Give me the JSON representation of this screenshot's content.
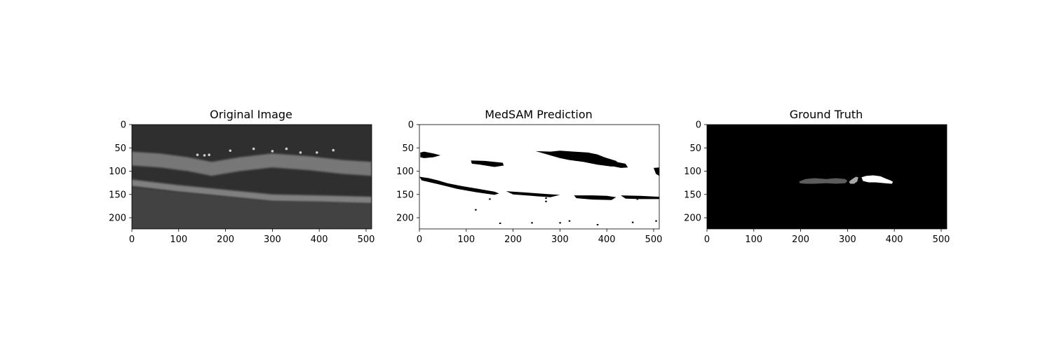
{
  "figure": {
    "background": "#ffffff"
  },
  "chart_data": [
    {
      "type": "image",
      "title": "Original Image",
      "render": "oct_scan",
      "xlim": [
        0,
        512
      ],
      "ylim": [
        224,
        0
      ],
      "xticks": [
        0,
        100,
        200,
        300,
        400,
        500
      ],
      "yticks": [
        0,
        50,
        100,
        150,
        200
      ],
      "layers": [
        {
          "name": "upper_retina_band",
          "top": [
            [
              0,
              58
            ],
            [
              60,
              62
            ],
            [
              120,
              70
            ],
            [
              170,
              80
            ],
            [
              230,
              70
            ],
            [
              300,
              62
            ],
            [
              380,
              68
            ],
            [
              450,
              76
            ],
            [
              512,
              80
            ]
          ],
          "thickness": 30,
          "intensity": 0.65
        },
        {
          "name": "lower_rpe_band",
          "top": [
            [
              0,
              118
            ],
            [
              100,
              130
            ],
            [
              200,
              140
            ],
            [
              300,
              150
            ],
            [
              400,
              152
            ],
            [
              512,
              155
            ]
          ],
          "thickness": 14,
          "intensity": 0.75
        }
      ],
      "bright_spots": [
        [
          140,
          65
        ],
        [
          155,
          66
        ],
        [
          165,
          65
        ],
        [
          210,
          56
        ],
        [
          260,
          52
        ],
        [
          300,
          57
        ],
        [
          330,
          52
        ],
        [
          360,
          60
        ],
        [
          395,
          60
        ],
        [
          430,
          55
        ]
      ]
    },
    {
      "type": "image",
      "title": "MedSAM Prediction",
      "render": "binary_mask",
      "foreground": "#ffffff",
      "background": "#000000",
      "xlim": [
        0,
        512
      ],
      "ylim": [
        224,
        0
      ],
      "xticks": [
        0,
        100,
        200,
        300,
        400,
        500
      ],
      "yticks": [
        0,
        50,
        100,
        150,
        200
      ],
      "dark_regions": [
        [
          [
            2,
            60
          ],
          [
            10,
            58
          ],
          [
            30,
            62
          ],
          [
            45,
            66
          ],
          [
            30,
            70
          ],
          [
            10,
            72
          ],
          [
            2,
            70
          ]
        ],
        [
          [
            110,
            77
          ],
          [
            140,
            78
          ],
          [
            160,
            80
          ],
          [
            178,
            82
          ],
          [
            180,
            88
          ],
          [
            160,
            91
          ],
          [
            130,
            86
          ],
          [
            112,
            84
          ]
        ],
        [
          [
            248,
            57
          ],
          [
            280,
            58
          ],
          [
            300,
            56
          ],
          [
            330,
            58
          ],
          [
            360,
            60
          ],
          [
            380,
            64
          ],
          [
            395,
            70
          ],
          [
            420,
            78
          ],
          [
            430,
            88
          ],
          [
            410,
            90
          ],
          [
            380,
            86
          ],
          [
            350,
            80
          ],
          [
            320,
            76
          ],
          [
            300,
            72
          ]
        ],
        [
          [
            400,
            80
          ],
          [
            420,
            80
          ],
          [
            440,
            84
          ],
          [
            445,
            92
          ],
          [
            430,
            93
          ],
          [
            405,
            88
          ]
        ],
        [
          [
            0,
            112
          ],
          [
            20,
            115
          ],
          [
            40,
            120
          ],
          [
            60,
            126
          ],
          [
            90,
            132
          ],
          [
            120,
            137
          ],
          [
            160,
            144
          ],
          [
            170,
            148
          ],
          [
            160,
            151
          ],
          [
            120,
            145
          ],
          [
            80,
            138
          ],
          [
            40,
            128
          ],
          [
            5,
            120
          ]
        ],
        [
          [
            185,
            143
          ],
          [
            230,
            146
          ],
          [
            270,
            149
          ],
          [
            300,
            151
          ],
          [
            280,
            156
          ],
          [
            240,
            153
          ],
          [
            200,
            150
          ]
        ],
        [
          [
            330,
            152
          ],
          [
            370,
            152
          ],
          [
            400,
            153
          ],
          [
            420,
            156
          ],
          [
            410,
            162
          ],
          [
            370,
            161
          ],
          [
            335,
            158
          ]
        ],
        [
          [
            430,
            152
          ],
          [
            470,
            153
          ],
          [
            512,
            155
          ],
          [
            512,
            160
          ],
          [
            470,
            160
          ],
          [
            440,
            159
          ]
        ],
        [
          [
            500,
            93
          ],
          [
            512,
            92
          ],
          [
            512,
            110
          ],
          [
            505,
            106
          ]
        ]
      ],
      "specks": [
        [
          120,
          183
        ],
        [
          240,
          211
        ],
        [
          270,
          165
        ],
        [
          270,
          158
        ],
        [
          300,
          211
        ],
        [
          320,
          207
        ],
        [
          380,
          215
        ],
        [
          455,
          210
        ],
        [
          505,
          207
        ],
        [
          150,
          160
        ],
        [
          172,
          212
        ],
        [
          465,
          160
        ]
      ]
    },
    {
      "type": "image",
      "title": "Ground Truth",
      "render": "label_mask",
      "background": "#000000",
      "xlim": [
        0,
        512
      ],
      "ylim": [
        224,
        0
      ],
      "xticks": [
        0,
        100,
        200,
        300,
        400,
        500
      ],
      "yticks": [
        0,
        50,
        100,
        150,
        200
      ],
      "regions": [
        {
          "label": 1,
          "color": "#5c5c5c",
          "polygon": [
            [
              197,
              122
            ],
            [
              210,
              117
            ],
            [
              230,
              115
            ],
            [
              255,
              117
            ],
            [
              275,
              115
            ],
            [
              295,
              117
            ],
            [
              300,
              121
            ],
            [
              295,
              126
            ],
            [
              275,
              127
            ],
            [
              255,
              126
            ],
            [
              230,
              127
            ],
            [
              210,
              127
            ],
            [
              198,
              126
            ]
          ]
        },
        {
          "label": 2,
          "color": "#a8a8a8",
          "polygon": [
            [
              303,
              123
            ],
            [
              310,
              117
            ],
            [
              318,
              112
            ],
            [
              323,
              113
            ],
            [
              321,
              122
            ],
            [
              314,
              127
            ],
            [
              306,
              127
            ]
          ]
        },
        {
          "label": 3,
          "color": "#ffffff",
          "polygon": [
            [
              330,
              113
            ],
            [
              340,
              110
            ],
            [
              355,
              109
            ],
            [
              370,
              111
            ],
            [
              382,
              116
            ],
            [
              392,
              120
            ],
            [
              397,
              123
            ],
            [
              395,
              127
            ],
            [
              380,
              126
            ],
            [
              360,
              124
            ],
            [
              345,
              124
            ],
            [
              333,
              121
            ]
          ]
        }
      ]
    }
  ]
}
